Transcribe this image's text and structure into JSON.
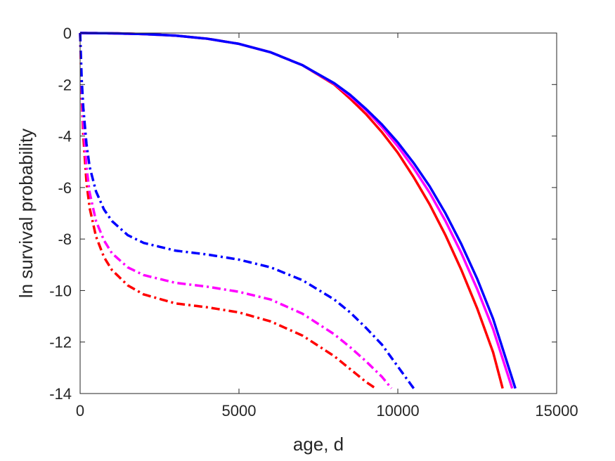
{
  "chart_data": {
    "type": "line",
    "xlabel": "age, d",
    "ylabel": "ln survival probability",
    "xlim": [
      0,
      15000
    ],
    "ylim": [
      -14,
      0
    ],
    "xticks": [
      0,
      5000,
      10000,
      15000
    ],
    "yticks": [
      0,
      -2,
      -4,
      -6,
      -8,
      -10,
      -12,
      -14
    ],
    "grid": false,
    "series": [
      {
        "color": "#ff0000",
        "style": "solid",
        "x": [
          0,
          1000,
          2000,
          3000,
          4000,
          5000,
          6000,
          7000,
          8000,
          8500,
          9000,
          9500,
          10000,
          10500,
          11000,
          11500,
          12000,
          12500,
          13000,
          13300
        ],
        "y": [
          0,
          -0.01,
          -0.04,
          -0.1,
          -0.22,
          -0.42,
          -0.75,
          -1.25,
          -2.0,
          -2.55,
          -3.15,
          -3.85,
          -4.65,
          -5.6,
          -6.65,
          -7.85,
          -9.2,
          -10.7,
          -12.4,
          -13.8
        ]
      },
      {
        "color": "#ff00ff",
        "style": "solid",
        "x": [
          0,
          1000,
          2000,
          3000,
          4000,
          5000,
          6000,
          7000,
          8000,
          8500,
          9000,
          9500,
          10000,
          10500,
          11000,
          11500,
          12000,
          12500,
          13000,
          13600
        ],
        "y": [
          0,
          -0.01,
          -0.04,
          -0.1,
          -0.22,
          -0.42,
          -0.75,
          -1.25,
          -1.97,
          -2.45,
          -3.0,
          -3.65,
          -4.4,
          -5.25,
          -6.2,
          -7.3,
          -8.55,
          -9.95,
          -11.5,
          -13.8
        ]
      },
      {
        "color": "#0000ff",
        "style": "solid",
        "x": [
          0,
          1000,
          2000,
          3000,
          4000,
          5000,
          6000,
          7000,
          8000,
          8500,
          9000,
          9500,
          10000,
          10500,
          11000,
          11500,
          12000,
          12500,
          13000,
          13700
        ],
        "y": [
          0,
          -0.01,
          -0.04,
          -0.1,
          -0.22,
          -0.42,
          -0.75,
          -1.25,
          -1.95,
          -2.4,
          -2.95,
          -3.55,
          -4.25,
          -5.05,
          -5.95,
          -7.0,
          -8.2,
          -9.55,
          -11.1,
          -13.8
        ]
      },
      {
        "color": "#ff0000",
        "style": "dashdot",
        "x": [
          0,
          50,
          100,
          200,
          300,
          500,
          750,
          1000,
          1500,
          2000,
          3000,
          4000,
          5000,
          6000,
          7000,
          8000,
          8500,
          9000,
          9300
        ],
        "y": [
          0,
          -2.5,
          -4.0,
          -5.8,
          -6.8,
          -7.9,
          -8.7,
          -9.2,
          -9.8,
          -10.15,
          -10.5,
          -10.65,
          -10.85,
          -11.2,
          -11.75,
          -12.55,
          -13.05,
          -13.55,
          -13.8
        ]
      },
      {
        "color": "#ff00ff",
        "style": "dashdot",
        "x": [
          0,
          50,
          100,
          200,
          300,
          500,
          750,
          1000,
          1500,
          2000,
          3000,
          4000,
          5000,
          6000,
          7000,
          8000,
          8500,
          9000,
          9500,
          9800
        ],
        "y": [
          0,
          -2.2,
          -3.5,
          -5.2,
          -6.2,
          -7.3,
          -8.05,
          -8.55,
          -9.1,
          -9.4,
          -9.7,
          -9.85,
          -10.05,
          -10.35,
          -10.9,
          -11.7,
          -12.2,
          -12.75,
          -13.35,
          -13.8
        ]
      },
      {
        "color": "#0000ff",
        "style": "dashdot",
        "x": [
          0,
          50,
          100,
          200,
          300,
          500,
          750,
          1000,
          1500,
          2000,
          3000,
          4000,
          5000,
          6000,
          7000,
          8000,
          8500,
          9000,
          9500,
          10000,
          10500
        ],
        "y": [
          0,
          -1.8,
          -2.9,
          -4.3,
          -5.2,
          -6.15,
          -6.85,
          -7.3,
          -7.85,
          -8.15,
          -8.45,
          -8.6,
          -8.8,
          -9.1,
          -9.6,
          -10.35,
          -10.85,
          -11.45,
          -12.1,
          -12.95,
          -13.8
        ]
      }
    ]
  }
}
